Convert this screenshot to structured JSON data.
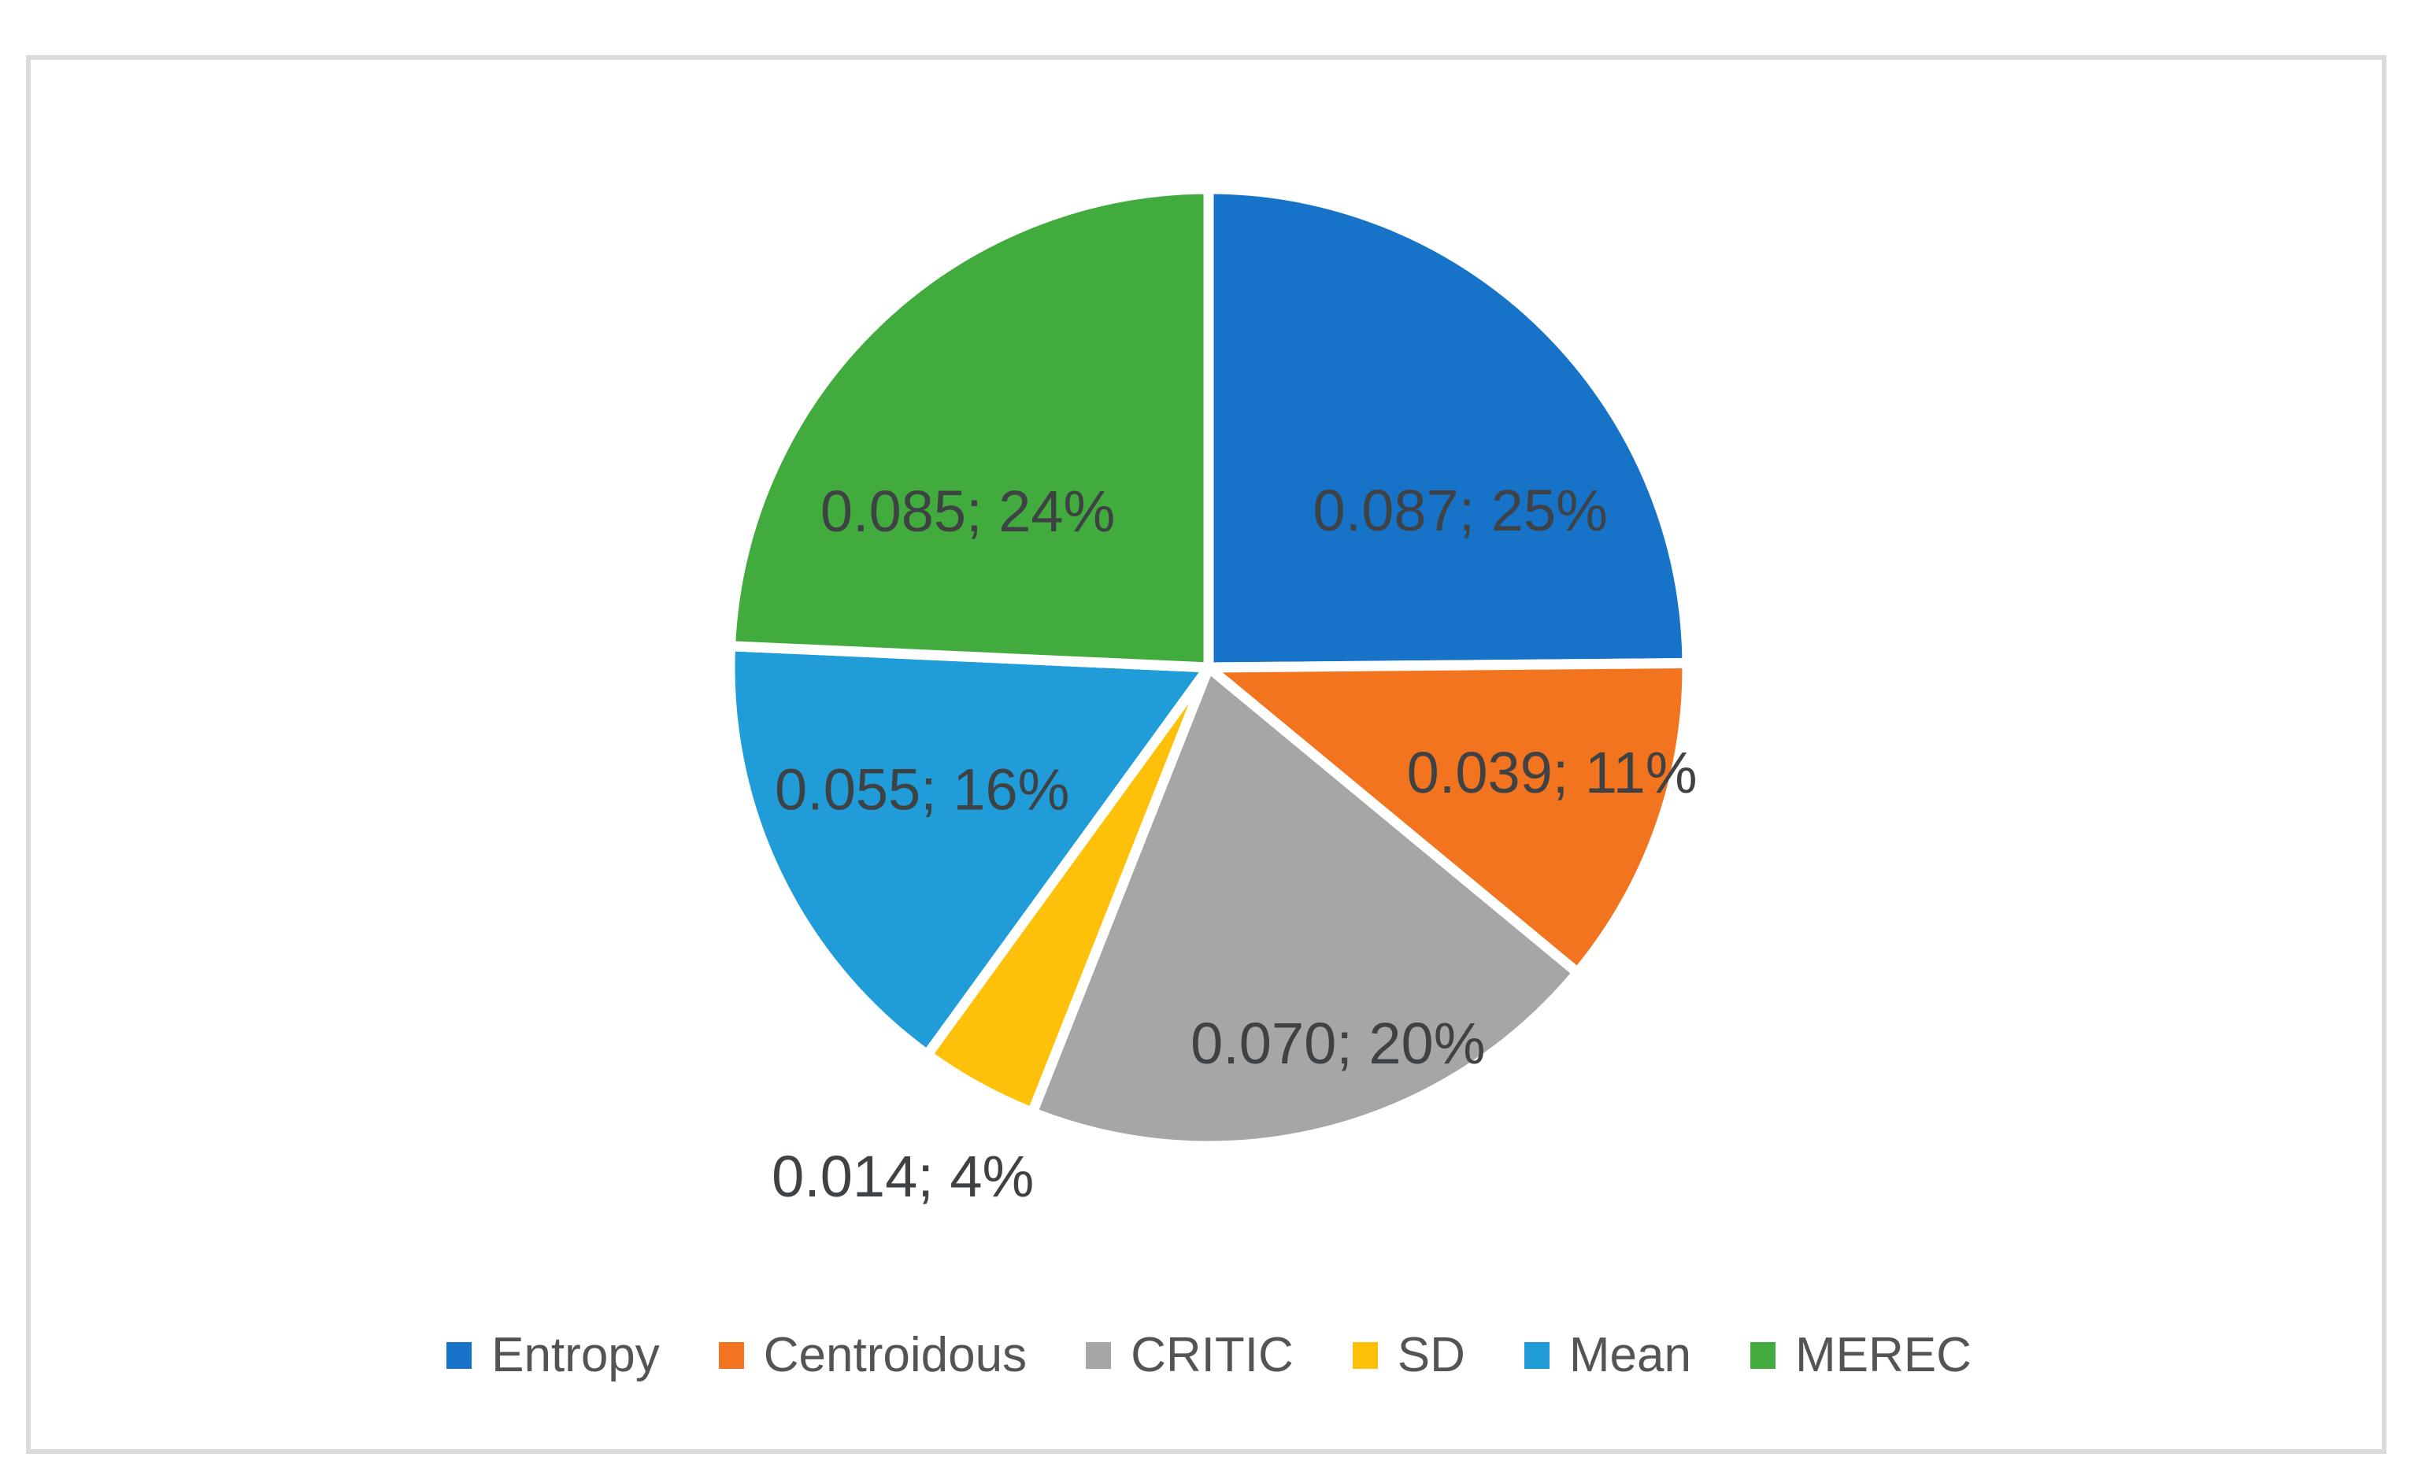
{
  "chart_data": {
    "type": "pie",
    "title": "",
    "series": [
      {
        "name": "Entropy",
        "value": 0.087,
        "pct": "25%",
        "label": "0.087; 25%",
        "color": "#1673C8"
      },
      {
        "name": "Centroidous",
        "value": 0.039,
        "pct": "11%",
        "label": "0.039; 11%",
        "color": "#F2741F"
      },
      {
        "name": "CRITIC",
        "value": 0.07,
        "pct": "20%",
        "label": "0.070; 20%",
        "color": "#A6A6A6"
      },
      {
        "name": "SD",
        "value": 0.014,
        "pct": "4%",
        "label": "0.014; 4%",
        "color": "#FFC00A"
      },
      {
        "name": "Mean",
        "value": 0.055,
        "pct": "16%",
        "label": "0.055; 16%",
        "color": "#209CD8"
      },
      {
        "name": "MEREC",
        "value": 0.085,
        "pct": "24%",
        "label": "0.085; 24%",
        "color": "#41AC3D"
      }
    ],
    "start_angle_deg": 0,
    "direction": "clockwise",
    "label_format": "value; percent",
    "label_color": "#3F4245",
    "slice_border_color": "#FFFFFF",
    "legend_position": "bottom",
    "legend_text_color": "#545454",
    "legend_entries": [
      "Entropy",
      "Centroidous",
      "CRITIC",
      "SD",
      "Mean",
      "MEREC"
    ]
  }
}
